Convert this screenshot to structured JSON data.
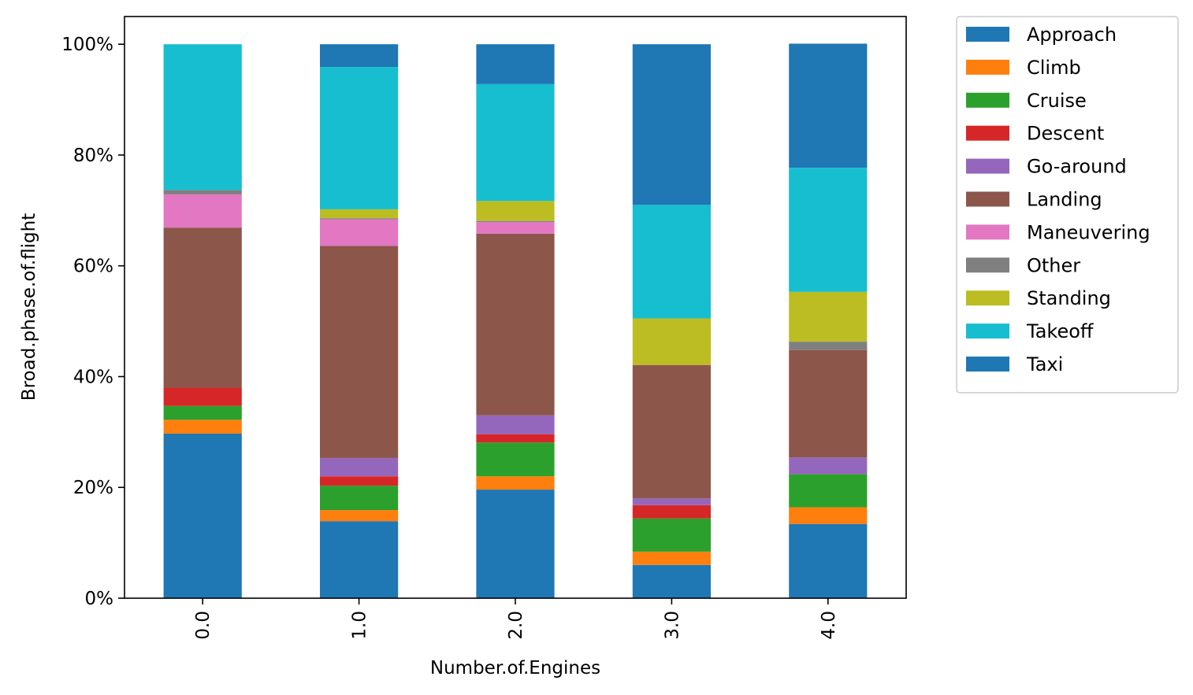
{
  "chart_data": {
    "type": "bar",
    "stacked": true,
    "normalized": true,
    "title": "",
    "xlabel": "Number.of.Engines",
    "ylabel": "Broad.phase.of.flight",
    "ylim": [
      0,
      1.05
    ],
    "yticks": [
      0,
      0.2,
      0.4,
      0.6,
      0.8,
      1.0
    ],
    "ytick_labels": [
      "0%",
      "20%",
      "40%",
      "60%",
      "80%",
      "100%"
    ],
    "categories": [
      "0.0",
      "1.0",
      "2.0",
      "3.0",
      "4.0"
    ],
    "grid": false,
    "legend_position": "outside-right-top",
    "series": [
      {
        "name": "Approach",
        "color": "#1f77b4",
        "values": [
          0.297,
          0.139,
          0.196,
          0.06,
          0.134
        ]
      },
      {
        "name": "Climb",
        "color": "#ff7f0e",
        "values": [
          0.025,
          0.02,
          0.024,
          0.024,
          0.03
        ]
      },
      {
        "name": "Cruise",
        "color": "#2ca02c",
        "values": [
          0.025,
          0.044,
          0.061,
          0.06,
          0.06
        ]
      },
      {
        "name": "Descent",
        "color": "#d62728",
        "values": [
          0.033,
          0.017,
          0.015,
          0.024,
          0.0
        ]
      },
      {
        "name": "Go-around",
        "color": "#9467bd",
        "values": [
          0.0,
          0.033,
          0.034,
          0.012,
          0.03
        ]
      },
      {
        "name": "Landing",
        "color": "#8c564b",
        "values": [
          0.289,
          0.383,
          0.328,
          0.241,
          0.194
        ]
      },
      {
        "name": "Maneuvering",
        "color": "#e377c2",
        "values": [
          0.06,
          0.048,
          0.021,
          0.0,
          0.0
        ]
      },
      {
        "name": "Other",
        "color": "#7f7f7f",
        "values": [
          0.008,
          0.002,
          0.002,
          0.0,
          0.015
        ]
      },
      {
        "name": "Standing",
        "color": "#bcbd22",
        "values": [
          0.0,
          0.016,
          0.036,
          0.084,
          0.09
        ]
      },
      {
        "name": "Takeoff",
        "color": "#17becf",
        "values": [
          0.263,
          0.257,
          0.211,
          0.205,
          0.224
        ]
      },
      {
        "name": "Taxi",
        "color": "#1f77b4",
        "values": [
          0.0,
          0.041,
          0.072,
          0.29,
          0.224
        ]
      }
    ]
  }
}
